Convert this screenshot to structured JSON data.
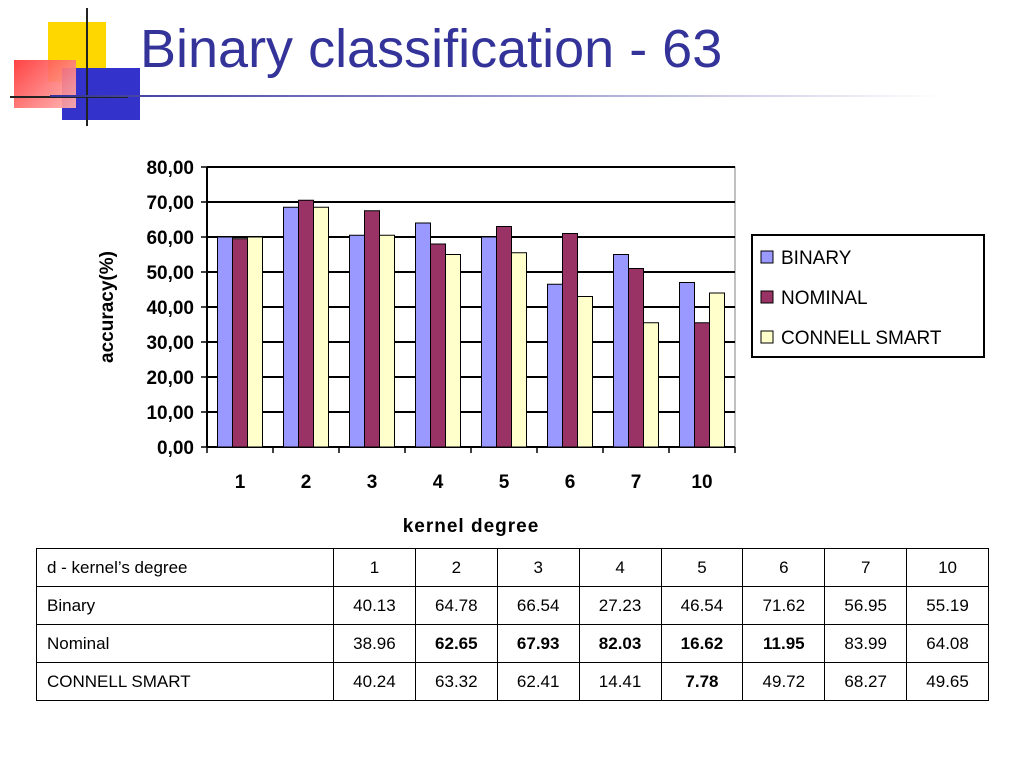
{
  "slide": {
    "title": "Binary classification - 63"
  },
  "colors": {
    "title": "#333399",
    "binary": "#9999ff",
    "nominal": "#993366",
    "connell_smart": "#ffffcc"
  },
  "chart_data": {
    "type": "bar",
    "ylabel": "accuracy(%)",
    "xlabel": "kernel degree",
    "ylim": [
      0,
      80
    ],
    "y_ticks": [
      "0,00",
      "10,00",
      "20,00",
      "30,00",
      "40,00",
      "50,00",
      "60,00",
      "70,00",
      "80,00"
    ],
    "grid": true,
    "legend_position": "right",
    "categories": [
      "1",
      "2",
      "3",
      "4",
      "5",
      "6",
      "7",
      "10"
    ],
    "series": [
      {
        "name": "BINARY",
        "values": [
          60,
          68.5,
          60.5,
          64,
          60,
          46.5,
          55,
          47
        ]
      },
      {
        "name": "NOMINAL",
        "values": [
          59.5,
          70.5,
          67.5,
          58,
          63,
          61,
          51,
          35.5
        ]
      },
      {
        "name": "CONNELL SMART",
        "values": [
          60,
          68.5,
          60.5,
          55,
          55.5,
          43,
          35.5,
          44
        ]
      }
    ]
  },
  "table": {
    "header": [
      "d - kernel’s degree",
      "1",
      "2",
      "3",
      "4",
      "5",
      "6",
      "7",
      "10"
    ],
    "rows": [
      {
        "label": "Binary",
        "cells": [
          "40.13",
          "64.78",
          "66.54",
          "27.23",
          "46.54",
          "71.62",
          "56.95",
          "55.19"
        ],
        "bold": [
          false,
          false,
          false,
          false,
          false,
          false,
          false,
          false
        ]
      },
      {
        "label": "Nominal",
        "cells": [
          "38.96",
          "62.65",
          "67.93",
          "82.03",
          "16.62",
          "11.95",
          "83.99",
          "64.08"
        ],
        "bold": [
          false,
          true,
          true,
          true,
          true,
          true,
          false,
          false
        ]
      },
      {
        "label": "CONNELL SMART",
        "cells": [
          "40.24",
          "63.32",
          "62.41",
          "14.41",
          "7.78",
          "49.72",
          "68.27",
          "49.65"
        ],
        "bold": [
          false,
          false,
          false,
          false,
          true,
          false,
          false,
          false
        ]
      }
    ]
  }
}
